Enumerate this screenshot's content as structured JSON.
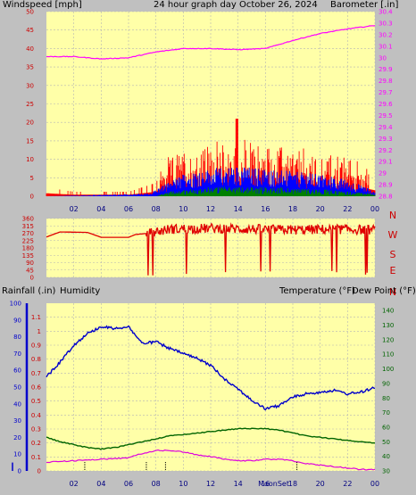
{
  "colors": {
    "plot_bg": "#ffffa8",
    "frame_bg": "#c0c0c0",
    "grid": "#b4b4b4",
    "wind_gust": "#ff0000",
    "wind_avg": "#0000ff",
    "wind_low": "#008000",
    "barometer": "#ff00ff",
    "direction": "#e00000",
    "humidity": "#0000cc",
    "temperature": "#006400",
    "dew_point": "#dd00dd",
    "rainfall": "#cc0000",
    "title": "#cccc00"
  },
  "header": {
    "windspeed_label": "Windspeed [mph]",
    "center_title": "24 hour graph day   October 26, 2024",
    "barometer_label": "Barometer [.in]"
  },
  "lower_header": {
    "rainfall_label": "Rainfall (.in)",
    "humidity_label": "Humidity",
    "temperature_label": "Temperature (°F)",
    "dew_point_label": "Dew Point (°F)"
  },
  "moon_sun_label": "MoonSet",
  "compass_letters": [
    "N",
    "W",
    "S",
    "E",
    "N"
  ],
  "chart_data": [
    {
      "type": "line",
      "title": "24 hour graph day   October 26, 2024",
      "x_ticks": [
        "02",
        "04",
        "06",
        "08",
        "10",
        "12",
        "14",
        "16",
        "18",
        "20",
        "22",
        "00"
      ],
      "left_axis": {
        "label": "Windspeed [mph]",
        "ticks": [
          "0",
          "5",
          "10",
          "15",
          "20",
          "25",
          "30",
          "35",
          "40",
          "45",
          "50"
        ],
        "ylim": [
          0,
          50
        ]
      },
      "right_axis": {
        "label": "Barometer [.in]",
        "ticks": [
          "28.8",
          "28.9",
          "29",
          "29.1",
          "29.2",
          "29.3",
          "29.4",
          "29.5",
          "29.6",
          "29.7",
          "29.8",
          "29.9",
          "30",
          "30.1",
          "30.2",
          "30.3",
          "30.4"
        ],
        "ylim": [
          28.8,
          30.4
        ]
      },
      "series": [
        {
          "name": "Barometer",
          "axis": "right",
          "points": [
            [
              0,
              30.01
            ],
            [
              2,
              30.01
            ],
            [
              4,
              29.99
            ],
            [
              6,
              30.0
            ],
            [
              8,
              30.05
            ],
            [
              10,
              30.08
            ],
            [
              12,
              30.08
            ],
            [
              14,
              30.07
            ],
            [
              16,
              30.08
            ],
            [
              18,
              30.15
            ],
            [
              20,
              30.21
            ],
            [
              22,
              30.25
            ],
            [
              24,
              30.28
            ]
          ]
        },
        {
          "name": "Wind gust (approx. envelope)",
          "axis": "left",
          "points": [
            [
              0,
              2
            ],
            [
              2,
              1
            ],
            [
              4,
              1
            ],
            [
              6,
              1
            ],
            [
              8,
              3
            ],
            [
              8.5,
              6
            ],
            [
              10,
              10
            ],
            [
              12,
              11
            ],
            [
              14,
              12
            ],
            [
              16,
              11
            ],
            [
              18,
              10
            ],
            [
              20,
              9
            ],
            [
              22,
              8
            ],
            [
              24,
              4
            ]
          ]
        },
        {
          "name": "Wind average (approx.)",
          "axis": "left",
          "points": [
            [
              0,
              0
            ],
            [
              7.5,
              0.5
            ],
            [
              8.5,
              2
            ],
            [
              10,
              4
            ],
            [
              12,
              5
            ],
            [
              14,
              5.5
            ],
            [
              16,
              5
            ],
            [
              18,
              4.5
            ],
            [
              20,
              4
            ],
            [
              22,
              3
            ],
            [
              24,
              1
            ]
          ]
        },
        {
          "name": "Wind low (approx.)",
          "axis": "left",
          "points": [
            [
              0,
              0
            ],
            [
              8,
              0
            ],
            [
              9,
              1
            ],
            [
              12,
              2
            ],
            [
              16,
              2
            ],
            [
              20,
              1.5
            ],
            [
              24,
              0.5
            ]
          ]
        }
      ]
    },
    {
      "type": "line",
      "title": "",
      "x_ticks": [],
      "left_axis": {
        "label": "",
        "ticks": [
          "360",
          "315",
          "270",
          "225",
          "180",
          "135",
          "90",
          "45",
          "0"
        ],
        "ylim": [
          0,
          360
        ]
      },
      "right_axis": {
        "label": "",
        "ticks": [
          "N",
          "W",
          "S",
          "E",
          "N"
        ]
      },
      "series": [
        {
          "name": "Wind direction",
          "points": [
            [
              0,
              247
            ],
            [
              1,
              278
            ],
            [
              3,
              275
            ],
            [
              4,
              245
            ],
            [
              6,
              245
            ],
            [
              6.5,
              262
            ],
            [
              7.5,
              270
            ],
            [
              9,
              295
            ],
            [
              12,
              300
            ],
            [
              15,
              295
            ],
            [
              18,
              290
            ],
            [
              21,
              295
            ],
            [
              24,
              290
            ]
          ]
        }
      ]
    },
    {
      "type": "line",
      "title": "",
      "x_ticks": [
        "02",
        "04",
        "06",
        "08",
        "10",
        "12",
        "14",
        "16",
        "18",
        "20",
        "22",
        "00"
      ],
      "left_axis_rain": {
        "label": "Rainfall (.in)",
        "ticks": [
          "0",
          "0.1",
          "0.2",
          "0.3",
          "0.4",
          "0.5",
          "0.6",
          "0.7",
          "0.8",
          "0.9",
          "1",
          "1.1"
        ],
        "ylim": [
          0,
          1.2
        ]
      },
      "left_axis_humidity": {
        "label": "Humidity",
        "ticks": [
          "0",
          "10",
          "20",
          "30",
          "40",
          "50",
          "60",
          "70",
          "80",
          "90",
          "100"
        ],
        "ylim": [
          0,
          100
        ]
      },
      "right_axis": {
        "label": "Temperature (°F)",
        "ticks": [
          "30",
          "40",
          "50",
          "60",
          "70",
          "80",
          "90",
          "100",
          "110",
          "120",
          "130",
          "140"
        ],
        "ylim": [
          30,
          145
        ]
      },
      "series": [
        {
          "name": "Humidity",
          "axis": "humidity",
          "points": [
            [
              0,
              56
            ],
            [
              1,
              65
            ],
            [
              2,
              75
            ],
            [
              3,
              82
            ],
            [
              4,
              86
            ],
            [
              5,
              85
            ],
            [
              6,
              86
            ],
            [
              7,
              76
            ],
            [
              8,
              77
            ],
            [
              9,
              73
            ],
            [
              10,
              70
            ],
            [
              11,
              67
            ],
            [
              12,
              63
            ],
            [
              13,
              55
            ],
            [
              14,
              49
            ],
            [
              15,
              42
            ],
            [
              16,
              37
            ],
            [
              17,
              39
            ],
            [
              18,
              44
            ],
            [
              19,
              46
            ],
            [
              20,
              47
            ],
            [
              21,
              48
            ],
            [
              22,
              46
            ],
            [
              23,
              47
            ],
            [
              24,
              50
            ]
          ]
        },
        {
          "name": "Temperature (°F)",
          "axis": "temp",
          "points": [
            [
              0,
              53
            ],
            [
              1,
              50
            ],
            [
              2,
              48
            ],
            [
              3,
              46
            ],
            [
              4,
              45
            ],
            [
              5,
              46
            ],
            [
              6,
              48
            ],
            [
              7,
              50
            ],
            [
              8,
              52
            ],
            [
              9,
              54
            ],
            [
              10,
              55
            ],
            [
              11,
              56
            ],
            [
              12,
              57
            ],
            [
              13,
              58
            ],
            [
              14,
              59
            ],
            [
              15,
              59
            ],
            [
              16,
              59
            ],
            [
              17,
              58
            ],
            [
              18,
              56
            ],
            [
              19,
              54
            ],
            [
              20,
              53
            ],
            [
              21,
              52
            ],
            [
              22,
              51
            ],
            [
              23,
              50
            ],
            [
              24,
              49
            ]
          ]
        },
        {
          "name": "Dew Point (°F)",
          "axis": "temp",
          "points": [
            [
              0,
              36
            ],
            [
              2,
              37
            ],
            [
              4,
              38
            ],
            [
              6,
              39
            ],
            [
              7,
              42
            ],
            [
              8,
              44
            ],
            [
              9,
              44
            ],
            [
              10,
              43
            ],
            [
              11,
              41
            ],
            [
              12,
              40
            ],
            [
              13,
              38
            ],
            [
              14,
              37
            ],
            [
              15,
              37
            ],
            [
              16,
              38
            ],
            [
              17,
              38
            ],
            [
              18,
              37
            ],
            [
              19,
              35
            ],
            [
              20,
              34
            ],
            [
              21,
              33
            ],
            [
              22,
              32
            ],
            [
              23,
              31
            ],
            [
              24,
              31
            ]
          ]
        }
      ]
    }
  ]
}
